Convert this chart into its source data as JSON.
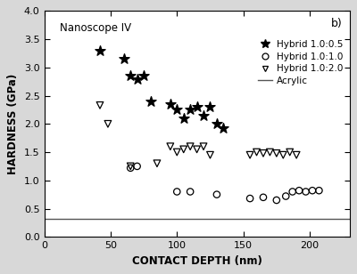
{
  "title_annotation": "Nanoscope IV",
  "panel_label": "b)",
  "xlabel": "CONTACT DEPTH (nm)",
  "ylabel": "HARDNESS (GPa)",
  "xlim": [
    0,
    230
  ],
  "ylim": [
    0.0,
    4.0
  ],
  "xticks": [
    0,
    50,
    100,
    150,
    200
  ],
  "yticks": [
    0.0,
    0.5,
    1.0,
    1.5,
    2.0,
    2.5,
    3.0,
    3.5,
    4.0
  ],
  "acrylic_y": 0.32,
  "hybrid_105_x": [
    42,
    60,
    65,
    70,
    75,
    80,
    95,
    100,
    105,
    110,
    115,
    120,
    125,
    130,
    135
  ],
  "hybrid_105_y": [
    3.3,
    3.15,
    2.85,
    2.8,
    2.85,
    2.4,
    2.35,
    2.25,
    2.1,
    2.25,
    2.3,
    2.15,
    2.3,
    2.0,
    1.93
  ],
  "hybrid_110_x": [
    65,
    70,
    100,
    110,
    130,
    155,
    165,
    175,
    182,
    187,
    192,
    197,
    202,
    207
  ],
  "hybrid_110_y": [
    1.22,
    1.25,
    0.8,
    0.8,
    0.75,
    0.68,
    0.7,
    0.65,
    0.72,
    0.8,
    0.82,
    0.8,
    0.82,
    0.82
  ],
  "hybrid_120_x": [
    42,
    48,
    65,
    85,
    95,
    100,
    105,
    110,
    115,
    120,
    125,
    155,
    160,
    165,
    170,
    175,
    180,
    185,
    190
  ],
  "hybrid_120_y": [
    2.33,
    2.0,
    1.25,
    1.3,
    1.6,
    1.5,
    1.55,
    1.6,
    1.55,
    1.6,
    1.45,
    1.45,
    1.5,
    1.48,
    1.5,
    1.48,
    1.45,
    1.5,
    1.45
  ],
  "legend_labels": [
    "Hybrid 1.0:0.5",
    "Hybrid 1.0:1.0",
    "Hybrid 1.0:2.0",
    "Acrylic"
  ],
  "fig_facecolor": "#d8d8d8",
  "plot_bg_color": "#ffffff"
}
